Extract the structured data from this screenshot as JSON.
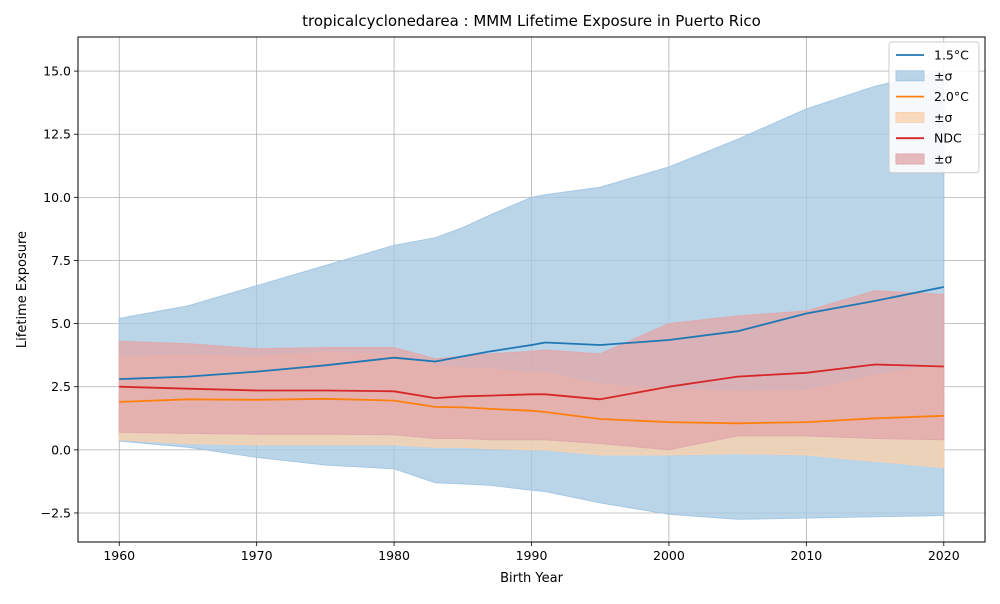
{
  "chart_data": {
    "type": "line",
    "title": "tropicalcyclonedarea : MMM Lifetime Exposure in Puerto Rico",
    "xlabel": "Birth Year",
    "ylabel": "Lifetime Exposure",
    "xlim": [
      1957,
      2023
    ],
    "ylim": [
      -3.65,
      16.35
    ],
    "xticks": [
      1960,
      1970,
      1980,
      1990,
      2000,
      2010,
      2020
    ],
    "yticks": [
      -2.5,
      0.0,
      2.5,
      5.0,
      7.5,
      10.0,
      12.5,
      15.0
    ],
    "xtick_labels": [
      "1960",
      "1970",
      "1980",
      "1990",
      "2000",
      "2010",
      "2020"
    ],
    "ytick_labels": [
      "−2.5",
      "0.0",
      "2.5",
      "5.0",
      "7.5",
      "10.0",
      "12.5",
      "15.0"
    ],
    "grid": true,
    "legend_position": "top-right",
    "x": [
      1960,
      1965,
      1970,
      1975,
      1980,
      1983,
      1985,
      1987,
      1990,
      1991,
      1995,
      2000,
      2005,
      2010,
      2015,
      2020
    ],
    "series": [
      {
        "name": "1.5°C",
        "band_label": "±σ",
        "color": "#1f77b4",
        "band_color": "#a6c8e2",
        "values": [
          2.8,
          2.9,
          3.1,
          3.35,
          3.65,
          3.5,
          3.7,
          3.9,
          4.15,
          4.25,
          4.15,
          4.35,
          4.7,
          5.4,
          5.9,
          6.45
        ],
        "upper": [
          5.2,
          5.7,
          6.5,
          7.3,
          8.1,
          8.4,
          8.8,
          9.3,
          10.0,
          10.1,
          10.4,
          11.2,
          12.3,
          13.5,
          14.4,
          15.0
        ],
        "lower": [
          0.35,
          0.1,
          -0.3,
          -0.6,
          -0.75,
          -1.3,
          -1.35,
          -1.4,
          -1.6,
          -1.65,
          -2.1,
          -2.55,
          -2.75,
          -2.7,
          -2.65,
          -2.6
        ]
      },
      {
        "name": "2.0°C",
        "band_label": "±σ",
        "color": "#ff7f0e",
        "band_color": "#fbd1ad",
        "values": [
          1.9,
          2.0,
          1.98,
          2.02,
          1.95,
          1.7,
          1.68,
          1.62,
          1.55,
          1.5,
          1.22,
          1.1,
          1.05,
          1.1,
          1.25,
          1.35
        ],
        "upper": [
          3.7,
          3.75,
          3.7,
          3.85,
          3.75,
          3.3,
          3.25,
          3.2,
          3.05,
          3.05,
          2.6,
          2.4,
          2.3,
          2.35,
          2.95,
          3.4
        ],
        "lower": [
          0.4,
          0.25,
          0.2,
          0.2,
          0.2,
          0.1,
          0.1,
          0.05,
          0.0,
          0.0,
          -0.2,
          -0.2,
          -0.15,
          -0.2,
          -0.45,
          -0.7
        ]
      },
      {
        "name": "NDC",
        "band_label": "±σ",
        "color": "#d62728",
        "band_color": "#e1a8ab",
        "values": [
          2.5,
          2.42,
          2.35,
          2.35,
          2.32,
          2.05,
          2.12,
          2.15,
          2.2,
          2.2,
          2.0,
          2.5,
          2.9,
          3.05,
          3.38,
          3.3
        ],
        "upper": [
          4.3,
          4.2,
          4.0,
          4.05,
          4.05,
          3.6,
          3.7,
          3.8,
          3.9,
          3.95,
          3.8,
          5.0,
          5.3,
          5.5,
          6.3,
          6.15
        ],
        "lower": [
          0.7,
          0.65,
          0.62,
          0.62,
          0.6,
          0.45,
          0.45,
          0.4,
          0.4,
          0.4,
          0.25,
          0.0,
          0.55,
          0.55,
          0.45,
          0.4
        ]
      }
    ]
  }
}
